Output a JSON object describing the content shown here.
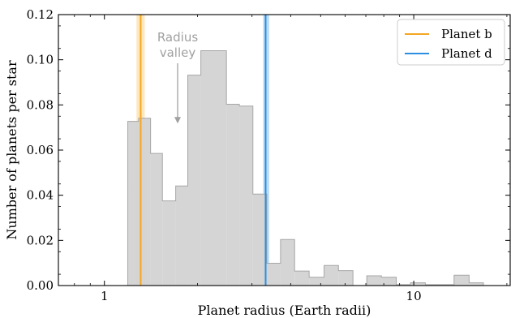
{
  "chart_data": {
    "type": "bar",
    "xlabel": "Planet radius (Earth radii)",
    "ylabel": "Number of planets per star",
    "x_scale": "log",
    "xlim": [
      0.71,
      20.5
    ],
    "ylim": [
      0,
      0.12
    ],
    "x_ticks": [
      "1",
      "10"
    ],
    "y_ticks": [
      "0.00",
      "0.02",
      "0.04",
      "0.06",
      "0.08",
      "0.10",
      "0.12"
    ],
    "grid": false,
    "histogram": {
      "color": "#d3d3d3",
      "edgecolor": "#a6a6a6",
      "bins": [
        {
          "x0": 1.19,
          "x1": 1.29,
          "y": 0.0727
        },
        {
          "x0": 1.29,
          "x1": 1.41,
          "y": 0.0741
        },
        {
          "x0": 1.41,
          "x1": 1.54,
          "y": 0.0585
        },
        {
          "x0": 1.54,
          "x1": 1.7,
          "y": 0.0375
        },
        {
          "x0": 1.7,
          "x1": 1.86,
          "y": 0.0441
        },
        {
          "x0": 1.86,
          "x1": 2.05,
          "y": 0.0932
        },
        {
          "x0": 2.05,
          "x1": 2.48,
          "y": 0.104
        },
        {
          "x0": 2.48,
          "x1": 2.73,
          "y": 0.0803
        },
        {
          "x0": 2.73,
          "x1": 3.02,
          "y": 0.0795
        },
        {
          "x0": 3.02,
          "x1": 3.35,
          "y": 0.0405
        },
        {
          "x0": 3.35,
          "x1": 3.71,
          "y": 0.0099
        },
        {
          "x0": 3.71,
          "x1": 4.12,
          "y": 0.0204
        },
        {
          "x0": 4.12,
          "x1": 4.59,
          "y": 0.0064
        },
        {
          "x0": 4.59,
          "x1": 5.13,
          "y": 0.0037
        },
        {
          "x0": 5.13,
          "x1": 5.71,
          "y": 0.0089
        },
        {
          "x0": 5.71,
          "x1": 6.36,
          "y": 0.0066
        },
        {
          "x0": 6.36,
          "x1": 7.05,
          "y": 0.0
        },
        {
          "x0": 7.05,
          "x1": 7.86,
          "y": 0.0043
        },
        {
          "x0": 7.86,
          "x1": 8.78,
          "y": 0.0037
        },
        {
          "x0": 8.78,
          "x1": 9.76,
          "y": 0.0004
        },
        {
          "x0": 9.76,
          "x1": 10.9,
          "y": 0.0012
        },
        {
          "x0": 10.9,
          "x1": 12.1,
          "y": 0.0004
        },
        {
          "x0": 12.1,
          "x1": 13.5,
          "y": 0.0004
        },
        {
          "x0": 13.5,
          "x1": 15.1,
          "y": 0.0046
        },
        {
          "x0": 15.1,
          "x1": 16.8,
          "y": 0.0012
        }
      ]
    },
    "series": [
      {
        "name": "Planet b",
        "x": 1.31,
        "band": [
          1.27,
          1.35
        ],
        "color": "#f5a623",
        "band_color": "#fde3b0"
      },
      {
        "name": "Planet d",
        "x": 3.32,
        "band": [
          3.26,
          3.41
        ],
        "color": "#2c8ee0",
        "band_color": "#b3d6f5"
      }
    ],
    "annotation": {
      "text_lines": [
        "Radius",
        "valley"
      ],
      "arrow_x": 1.75,
      "arrow_y": 0.0725,
      "color": "#a0a0a0"
    },
    "legend_position": "top-right"
  }
}
